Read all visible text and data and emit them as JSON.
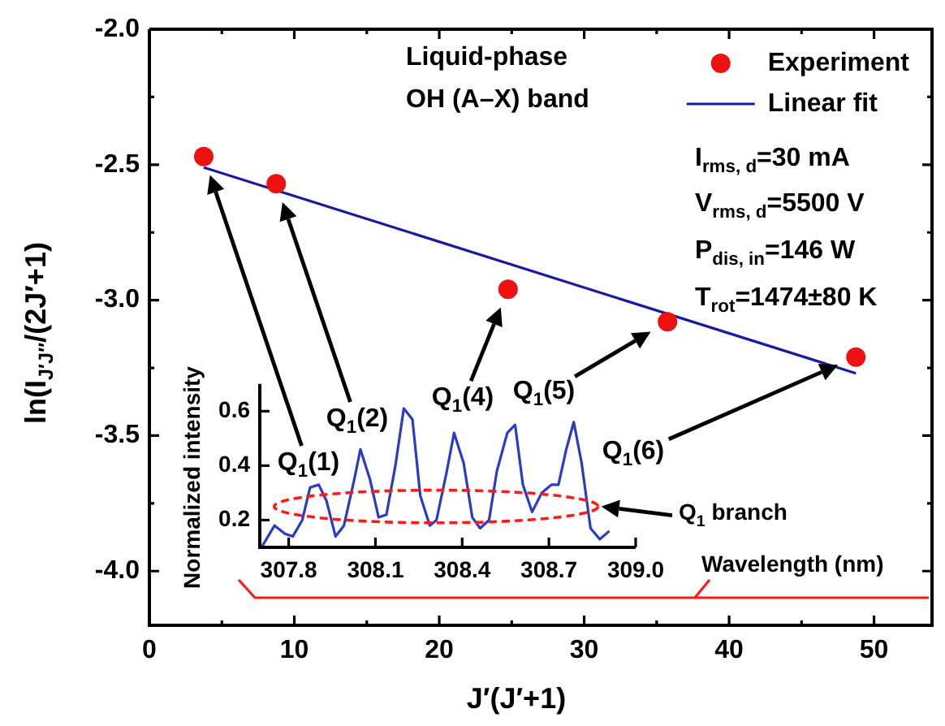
{
  "chart_data": [
    {
      "type": "scatter",
      "xlabel": "J′(J′+1)",
      "ylabel": "ln(I$_{J′J″}$/(2J′+1)",
      "xlim": [
        0,
        54
      ],
      "xticks": [
        0,
        {
          "value": 5,
          "label": null
        },
        10,
        {
          "value": 15,
          "label": null
        },
        20,
        {
          "value": 25,
          "label": null
        },
        30,
        {
          "value": 35,
          "label": null
        },
        40,
        {
          "value": 45,
          "label": null
        },
        50
      ],
      "ylim": [
        -4.2,
        -2.0
      ],
      "yticks": [
        {
          "value": -4.0,
          "label": "-4.0"
        },
        {
          "value": -3.75,
          "label": null
        },
        {
          "value": -3.5,
          "label": "-3.5"
        },
        {
          "value": -3.25,
          "label": null
        },
        {
          "value": -3.0,
          "label": "-3.0"
        },
        {
          "value": -2.75,
          "label": null
        },
        {
          "value": -2.5,
          "label": "-2.5"
        },
        {
          "value": -2.25,
          "label": null
        },
        {
          "value": -2.0,
          "label": "-2.0"
        }
      ],
      "legend": "top right",
      "series": [
        {
          "name": "Experiment",
          "type": "scatter",
          "marker": "circle",
          "color": "#ee1111",
          "x": [
            3.75,
            8.75,
            24.75,
            35.75,
            48.75
          ],
          "values": [
            -2.47,
            -2.57,
            -2.96,
            -3.08,
            -3.21
          ]
        },
        {
          "name": "Linear fit",
          "type": "line",
          "marker": "none",
          "color": "#1a1aa0",
          "x": [
            3.75,
            48.75
          ],
          "values": [
            -2.51,
            -3.27
          ]
        }
      ],
      "annotations": [
        "Liquid-phase",
        "OH (A–X) band",
        "I$_{rms, d}$=30 mA",
        "V$_{rms, d}$=5500 V",
        "P$_{dis, in}$=146 W",
        "T$_{rot}$=1474±80 K"
      ]
    },
    {
      "type": "line",
      "xlabel": "Wavelength (nm)",
      "ylabel": "Normalized intensity",
      "xlim": [
        307.7,
        309.0
      ],
      "xticks": [
        307.8,
        308.1,
        308.4,
        308.7,
        {
          "value": 309.0,
          "label": "309.0"
        }
      ],
      "ylim": [
        0.1,
        0.7
      ],
      "yticks": [
        0.2,
        0.4,
        0.6
      ],
      "marker": "none",
      "color": "#2a3bc8",
      "x": [
        307.706,
        307.751,
        307.787,
        307.814,
        307.847,
        307.874,
        307.904,
        307.931,
        307.962,
        307.991,
        308.027,
        308.048,
        308.081,
        308.111,
        308.138,
        308.169,
        308.198,
        308.228,
        308.255,
        308.288,
        308.311,
        308.345,
        308.372,
        308.405,
        308.435,
        308.462,
        308.493,
        308.52,
        308.556,
        308.583,
        308.61,
        308.642,
        308.675,
        308.709,
        308.733,
        308.76,
        308.786,
        308.813,
        308.844,
        308.876,
        308.909
      ],
      "values": [
        0.1,
        0.18,
        0.15,
        0.14,
        0.2,
        0.32,
        0.33,
        0.27,
        0.14,
        0.18,
        0.35,
        0.46,
        0.35,
        0.21,
        0.22,
        0.4,
        0.61,
        0.57,
        0.29,
        0.18,
        0.2,
        0.37,
        0.52,
        0.41,
        0.21,
        0.17,
        0.2,
        0.38,
        0.52,
        0.55,
        0.33,
        0.23,
        0.3,
        0.33,
        0.33,
        0.46,
        0.56,
        0.41,
        0.17,
        0.13,
        0.16
      ],
      "annotations": [
        "Q$_{1}$(1)",
        "Q$_{1}$(2)",
        "Q$_{1}$(4)",
        "Q$_{1}$(5)",
        "Q$_{1}$(6)",
        "Q$_{1}$ branch"
      ]
    }
  ]
}
